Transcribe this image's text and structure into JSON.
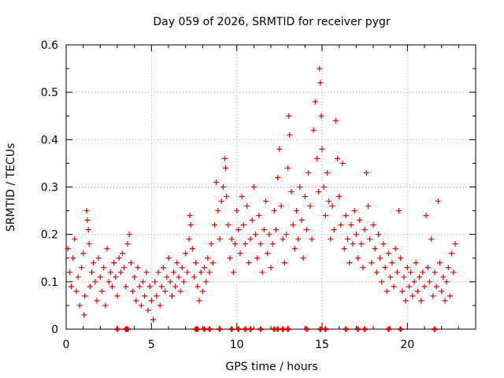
{
  "chart_data": {
    "type": "scatter",
    "title": "Day 059 of 2026, SRMTID for receiver pygr",
    "xlabel": "GPS time / hours",
    "ylabel": "SRMTID / TECUs",
    "xlim": [
      0,
      24
    ],
    "ylim": [
      0,
      0.6
    ],
    "xticks": [
      0,
      5,
      10,
      15,
      20
    ],
    "yticks": [
      0,
      0.1,
      0.2,
      0.3,
      0.4,
      0.5,
      0.6
    ],
    "xtick_labels": [
      "0",
      "5",
      "10",
      "15",
      "20"
    ],
    "ytick_labels": [
      "0",
      "0.1",
      "0.2",
      "0.3",
      "0.4",
      "0.5",
      "0.6"
    ],
    "grid": true,
    "marker": "+",
    "series_color": "#e00000",
    "zero_value_markers_x": [
      3.0,
      3.5,
      3.6,
      7.6,
      7.7,
      8.1,
      8.4,
      9.0,
      9.7,
      10.1,
      10.5,
      10.8,
      11.4,
      12.2,
      12.4,
      12.7,
      13.0,
      14.1,
      14.9,
      15.2,
      16.4,
      17.1,
      17.5,
      18.9,
      19.6,
      21.6
    ],
    "series": [
      {
        "name": "SRMTID",
        "points": [
          [
            0.1,
            0.17
          ],
          [
            0.2,
            0.12
          ],
          [
            0.3,
            0.09
          ],
          [
            0.4,
            0.15
          ],
          [
            0.5,
            0.19
          ],
          [
            0.6,
            0.08
          ],
          [
            0.7,
            0.11
          ],
          [
            0.8,
            0.05
          ],
          [
            0.9,
            0.13
          ],
          [
            1.0,
            0.16
          ],
          [
            1.05,
            0.03
          ],
          [
            1.1,
            0.07
          ],
          [
            1.2,
            0.25
          ],
          [
            1.25,
            0.23
          ],
          [
            1.3,
            0.21
          ],
          [
            1.35,
            0.18
          ],
          [
            1.4,
            0.09
          ],
          [
            1.5,
            0.12
          ],
          [
            1.6,
            0.14
          ],
          [
            1.7,
            0.1
          ],
          [
            1.8,
            0.06
          ],
          [
            1.9,
            0.15
          ],
          [
            2.0,
            0.11
          ],
          [
            2.1,
            0.08
          ],
          [
            2.2,
            0.13
          ],
          [
            2.3,
            0.05
          ],
          [
            2.4,
            0.17
          ],
          [
            2.5,
            0.1
          ],
          [
            2.6,
            0.12
          ],
          [
            2.7,
            0.09
          ],
          [
            2.8,
            0.14
          ],
          [
            2.9,
            0.11
          ],
          [
            3.0,
            0.07
          ],
          [
            3.1,
            0.15
          ],
          [
            3.2,
            0.12
          ],
          [
            3.3,
            0.16
          ],
          [
            3.4,
            0.13
          ],
          [
            3.5,
            0.09
          ],
          [
            3.6,
            0.18
          ],
          [
            3.7,
            0.2
          ],
          [
            3.8,
            0.14
          ],
          [
            3.9,
            0.08
          ],
          [
            4.0,
            0.11
          ],
          [
            4.1,
            0.06
          ],
          [
            4.2,
            0.13
          ],
          [
            4.3,
            0.09
          ],
          [
            4.4,
            0.05
          ],
          [
            4.5,
            0.1
          ],
          [
            4.6,
            0.07
          ],
          [
            4.7,
            0.12
          ],
          [
            4.8,
            0.04
          ],
          [
            4.9,
            0.09
          ],
          [
            5.0,
            0.06
          ],
          [
            5.1,
            0.02
          ],
          [
            5.2,
            0.1
          ],
          [
            5.3,
            0.07
          ],
          [
            5.4,
            0.12
          ],
          [
            5.5,
            0.05
          ],
          [
            5.6,
            0.09
          ],
          [
            5.7,
            0.13
          ],
          [
            5.8,
            0.08
          ],
          [
            5.9,
            0.11
          ],
          [
            6.0,
            0.15
          ],
          [
            6.1,
            0.1
          ],
          [
            6.2,
            0.07
          ],
          [
            6.3,
            0.12
          ],
          [
            6.4,
            0.09
          ],
          [
            6.5,
            0.14
          ],
          [
            6.6,
            0.11
          ],
          [
            6.7,
            0.08
          ],
          [
            6.8,
            0.13
          ],
          [
            6.9,
            0.1
          ],
          [
            7.0,
            0.16
          ],
          [
            7.1,
            0.12
          ],
          [
            7.2,
            0.19
          ],
          [
            7.25,
            0.24
          ],
          [
            7.3,
            0.22
          ],
          [
            7.4,
            0.17
          ],
          [
            7.5,
            0.11
          ],
          [
            7.6,
            0.14
          ],
          [
            7.7,
            0.09
          ],
          [
            7.8,
            0.06
          ],
          [
            7.9,
            0.12
          ],
          [
            8.0,
            0.08
          ],
          [
            8.1,
            0.13
          ],
          [
            8.2,
            0.1
          ],
          [
            8.3,
            0.15
          ],
          [
            8.4,
            0.12
          ],
          [
            8.5,
            0.18
          ],
          [
            8.6,
            0.14
          ],
          [
            8.7,
            0.22
          ],
          [
            8.8,
            0.31
          ],
          [
            8.9,
            0.25
          ],
          [
            9.0,
            0.19
          ],
          [
            9.1,
            0.27
          ],
          [
            9.2,
            0.3
          ],
          [
            9.3,
            0.36
          ],
          [
            9.35,
            0.34
          ],
          [
            9.4,
            0.28
          ],
          [
            9.5,
            0.22
          ],
          [
            9.6,
            0.15
          ],
          [
            9.7,
            0.19
          ],
          [
            9.8,
            0.12
          ],
          [
            9.9,
            0.18
          ],
          [
            10.0,
            0.25
          ],
          [
            10.1,
            0.21
          ],
          [
            10.2,
            0.16
          ],
          [
            10.3,
            0.28
          ],
          [
            10.4,
            0.22
          ],
          [
            10.5,
            0.18
          ],
          [
            10.6,
            0.26
          ],
          [
            10.7,
            0.14
          ],
          [
            10.8,
            0.19
          ],
          [
            10.9,
            0.23
          ],
          [
            11.0,
            0.3
          ],
          [
            11.1,
            0.2
          ],
          [
            11.2,
            0.15
          ],
          [
            11.3,
            0.24
          ],
          [
            11.4,
            0.18
          ],
          [
            11.5,
            0.12
          ],
          [
            11.6,
            0.21
          ],
          [
            11.7,
            0.27
          ],
          [
            11.8,
            0.16
          ],
          [
            11.9,
            0.2
          ],
          [
            12.0,
            0.13
          ],
          [
            12.1,
            0.18
          ],
          [
            12.2,
            0.25
          ],
          [
            12.3,
            0.21
          ],
          [
            12.4,
            0.32
          ],
          [
            12.5,
            0.38
          ],
          [
            12.6,
            0.26
          ],
          [
            12.7,
            0.19
          ],
          [
            12.8,
            0.14
          ],
          [
            12.9,
            0.2
          ],
          [
            13.0,
            0.34
          ],
          [
            13.05,
            0.45
          ],
          [
            13.1,
            0.41
          ],
          [
            13.2,
            0.29
          ],
          [
            13.3,
            0.22
          ],
          [
            13.4,
            0.17
          ],
          [
            13.5,
            0.25
          ],
          [
            13.6,
            0.19
          ],
          [
            13.7,
            0.3
          ],
          [
            13.8,
            0.23
          ],
          [
            13.9,
            0.15
          ],
          [
            14.0,
            0.28
          ],
          [
            14.1,
            0.21
          ],
          [
            14.2,
            0.33
          ],
          [
            14.3,
            0.26
          ],
          [
            14.4,
            0.19
          ],
          [
            14.5,
            0.42
          ],
          [
            14.6,
            0.48
          ],
          [
            14.7,
            0.36
          ],
          [
            14.8,
            0.29
          ],
          [
            14.85,
            0.55
          ],
          [
            14.9,
            0.52
          ],
          [
            14.95,
            0.45
          ],
          [
            15.0,
            0.38
          ],
          [
            15.1,
            0.3
          ],
          [
            15.2,
            0.24
          ],
          [
            15.3,
            0.33
          ],
          [
            15.4,
            0.27
          ],
          [
            15.5,
            0.19
          ],
          [
            15.6,
            0.26
          ],
          [
            15.7,
            0.21
          ],
          [
            15.8,
            0.44
          ],
          [
            15.9,
            0.36
          ],
          [
            16.0,
            0.28
          ],
          [
            16.1,
            0.22
          ],
          [
            16.2,
            0.35
          ],
          [
            16.3,
            0.17
          ],
          [
            16.4,
            0.24
          ],
          [
            16.5,
            0.19
          ],
          [
            16.6,
            0.14
          ],
          [
            16.7,
            0.22
          ],
          [
            16.8,
            0.18
          ],
          [
            16.9,
            0.25
          ],
          [
            17.0,
            0.2
          ],
          [
            17.1,
            0.15
          ],
          [
            17.2,
            0.23
          ],
          [
            17.3,
            0.18
          ],
          [
            17.4,
            0.13
          ],
          [
            17.5,
            0.21
          ],
          [
            17.6,
            0.33
          ],
          [
            17.7,
            0.26
          ],
          [
            17.8,
            0.19
          ],
          [
            17.9,
            0.14
          ],
          [
            18.0,
            0.22
          ],
          [
            18.1,
            0.17
          ],
          [
            18.2,
            0.12
          ],
          [
            18.3,
            0.2
          ],
          [
            18.4,
            0.15
          ],
          [
            18.5,
            0.1
          ],
          [
            18.6,
            0.18
          ],
          [
            18.7,
            0.13
          ],
          [
            18.8,
            0.08
          ],
          [
            18.9,
            0.16
          ],
          [
            19.0,
            0.11
          ],
          [
            19.1,
            0.14
          ],
          [
            19.2,
            0.09
          ],
          [
            19.3,
            0.17
          ],
          [
            19.4,
            0.12
          ],
          [
            19.5,
            0.25
          ],
          [
            19.6,
            0.15
          ],
          [
            19.7,
            0.08
          ],
          [
            19.8,
            0.11
          ],
          [
            19.9,
            0.06
          ],
          [
            20.0,
            0.13
          ],
          [
            20.1,
            0.09
          ],
          [
            20.2,
            0.12
          ],
          [
            20.3,
            0.07
          ],
          [
            20.4,
            0.1
          ],
          [
            20.5,
            0.14
          ],
          [
            20.6,
            0.08
          ],
          [
            20.7,
            0.11
          ],
          [
            20.8,
            0.06
          ],
          [
            20.9,
            0.12
          ],
          [
            21.0,
            0.09
          ],
          [
            21.1,
            0.24
          ],
          [
            21.2,
            0.13
          ],
          [
            21.3,
            0.1
          ],
          [
            21.4,
            0.19
          ],
          [
            21.5,
            0.07
          ],
          [
            21.6,
            0.12
          ],
          [
            21.7,
            0.09
          ],
          [
            21.8,
            0.27
          ],
          [
            21.9,
            0.14
          ],
          [
            22.0,
            0.08
          ],
          [
            22.1,
            0.11
          ],
          [
            22.2,
            0.06
          ],
          [
            22.3,
            0.1
          ],
          [
            22.4,
            0.13
          ],
          [
            22.5,
            0.07
          ],
          [
            22.6,
            0.16
          ],
          [
            22.7,
            0.12
          ],
          [
            22.8,
            0.18
          ]
        ]
      }
    ]
  }
}
